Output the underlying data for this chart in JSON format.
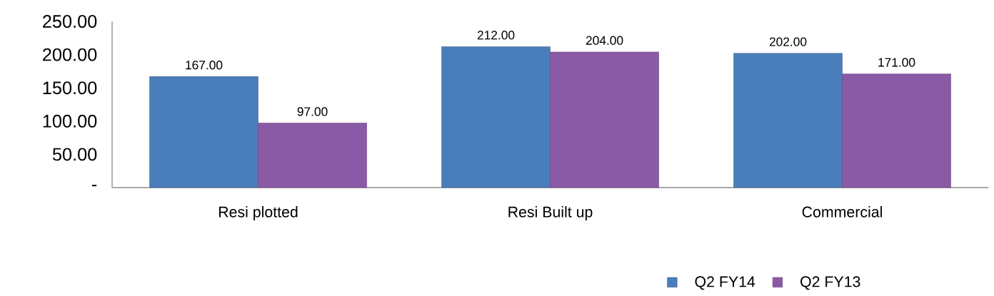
{
  "chart_data": {
    "type": "bar",
    "categories": [
      "Resi plotted",
      "Resi Built up",
      "Commercial"
    ],
    "series": [
      {
        "name": "Q2 FY14",
        "color": "#4a7ebb",
        "values": [
          167,
          212,
          202
        ],
        "value_labels": [
          "167.00",
          "212.00",
          "202.00"
        ]
      },
      {
        "name": "Q2 FY13",
        "color": "#8a5aa6",
        "values": [
          97,
          204,
          171
        ],
        "value_labels": [
          "97.00",
          "204.00",
          "171.00"
        ]
      }
    ],
    "ylim": [
      0,
      250
    ],
    "yticks": [
      {
        "value": 0,
        "label": "-"
      },
      {
        "value": 50,
        "label": "50.00"
      },
      {
        "value": 100,
        "label": "100.00"
      },
      {
        "value": 150,
        "label": "150.00"
      },
      {
        "value": 200,
        "label": "200.00"
      },
      {
        "value": 250,
        "label": "250.00"
      }
    ],
    "legend": "bottom right"
  }
}
